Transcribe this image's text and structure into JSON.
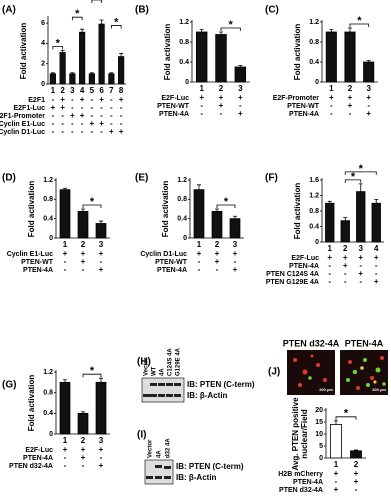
{
  "chart_data": [
    {
      "type": "bar",
      "panel": "(A)",
      "ylabel": "Fold activation",
      "ylim": [
        0,
        6.5
      ],
      "yticks": [
        0,
        2,
        4,
        6
      ],
      "color": "#111",
      "categories": [
        "1",
        "2",
        "3",
        "4",
        "5",
        "6",
        "7",
        "8"
      ],
      "values": [
        1,
        3.1,
        1,
        5.1,
        1,
        5.9,
        1,
        2.7
      ],
      "errors": [
        0.1,
        0.2,
        0.1,
        0.3,
        0.1,
        0.4,
        0.1,
        0.3
      ],
      "conditions": [
        {
          "label": "E2F1",
          "signs": [
            "-",
            "+",
            "-",
            "+",
            "-",
            "+",
            "-",
            "+"
          ]
        },
        {
          "label": "E2F1-Luc",
          "signs": [
            "+",
            "+",
            "-",
            "-",
            "-",
            "-",
            "-",
            "-"
          ]
        },
        {
          "label": "E2F1-Promoter",
          "signs": [
            "-",
            "-",
            "+",
            "+",
            "-",
            "-",
            "-",
            "-"
          ]
        },
        {
          "label": "Cyclin E1-Luc",
          "signs": [
            "-",
            "-",
            "-",
            "-",
            "+",
            "+",
            "-",
            "-"
          ]
        },
        {
          "label": "Cyclin D1-Luc",
          "signs": [
            "-",
            "-",
            "-",
            "-",
            "-",
            "-",
            "+",
            "+"
          ]
        }
      ],
      "brackets": [
        {
          "between": [
            "1",
            "2"
          ],
          "label": "*"
        },
        {
          "between": [
            "3",
            "4"
          ],
          "label": "*"
        },
        {
          "between": [
            "5",
            "6"
          ],
          "label": "*"
        },
        {
          "between": [
            "7",
            "8"
          ],
          "label": "*"
        }
      ]
    },
    {
      "type": "bar",
      "panel": "(B)",
      "ylabel": "Fold activation",
      "ylim": [
        0,
        1.2
      ],
      "yticks": [
        0,
        0.4,
        0.8,
        1.2
      ],
      "color": "#111",
      "categories": [
        "1",
        "2",
        "3"
      ],
      "values": [
        1.0,
        0.95,
        0.3
      ],
      "errors": [
        0.05,
        0.05,
        0.03
      ],
      "conditions": [
        {
          "label": "E2F-Luc",
          "signs": [
            "+",
            "+",
            "+"
          ]
        },
        {
          "label": "PTEN-WT",
          "signs": [
            "-",
            "+",
            "-"
          ]
        },
        {
          "label": "PTEN-4A",
          "signs": [
            "-",
            "-",
            "+"
          ]
        }
      ],
      "brackets": [
        {
          "between": [
            "2",
            "3"
          ],
          "label": "*"
        }
      ]
    },
    {
      "type": "bar",
      "panel": "(C)",
      "ylabel": "Fold activation",
      "ylim": [
        0,
        1.2
      ],
      "yticks": [
        0,
        0.4,
        0.8,
        1.2
      ],
      "color": "#111",
      "categories": [
        "1",
        "2",
        "3"
      ],
      "values": [
        1.0,
        1.0,
        0.4
      ],
      "errors": [
        0.05,
        0.08,
        0.03
      ],
      "conditions": [
        {
          "label": "E2F-Promoter",
          "signs": [
            "+",
            "+",
            "+"
          ]
        },
        {
          "label": "PTEN-WT",
          "signs": [
            "-",
            "+",
            "-"
          ]
        },
        {
          "label": "PTEN-4A",
          "signs": [
            "-",
            "-",
            "+"
          ]
        }
      ],
      "brackets": [
        {
          "between": [
            "2",
            "3"
          ],
          "label": "*"
        }
      ]
    },
    {
      "type": "bar",
      "panel": "(D)",
      "ylabel": "Fold activation",
      "ylim": [
        0,
        1.2
      ],
      "yticks": [
        0,
        0.4,
        0.8,
        1.2
      ],
      "color": "#111",
      "categories": [
        "1",
        "2",
        "3"
      ],
      "values": [
        1.0,
        0.55,
        0.3
      ],
      "errors": [
        0.03,
        0.05,
        0.05
      ],
      "conditions": [
        {
          "label": "Cyclin E1-Luc",
          "signs": [
            "+",
            "+",
            "+"
          ]
        },
        {
          "label": "PTEN-WT",
          "signs": [
            "-",
            "+",
            "-"
          ]
        },
        {
          "label": "PTEN-4A",
          "signs": [
            "-",
            "-",
            "+"
          ]
        }
      ],
      "brackets": [
        {
          "between": [
            "2",
            "3"
          ],
          "label": "*"
        }
      ]
    },
    {
      "type": "bar",
      "panel": "(E)",
      "ylabel": "Fold activation",
      "ylim": [
        0,
        1.2
      ],
      "yticks": [
        0,
        0.4,
        0.8,
        1.2
      ],
      "color": "#111",
      "categories": [
        "1",
        "2",
        "3"
      ],
      "values": [
        1.0,
        0.55,
        0.4
      ],
      "errors": [
        0.1,
        0.05,
        0.05
      ],
      "conditions": [
        {
          "label": "Cyclin D1-Luc",
          "signs": [
            "+",
            "+",
            "+"
          ]
        },
        {
          "label": "PTEN-WT",
          "signs": [
            "-",
            "+",
            "-"
          ]
        },
        {
          "label": "PTEN-4A",
          "signs": [
            "-",
            "-",
            "+"
          ]
        }
      ],
      "brackets": [
        {
          "between": [
            "2",
            "3"
          ],
          "label": "*"
        }
      ]
    },
    {
      "type": "bar",
      "panel": "(F)",
      "ylabel": "Fold activation",
      "ylim": [
        0,
        1.6
      ],
      "yticks": [
        0,
        0.4,
        0.8,
        1.2,
        1.6
      ],
      "color": "#111",
      "categories": [
        "1",
        "2",
        "3",
        "4"
      ],
      "values": [
        1.0,
        0.55,
        1.3,
        1.0
      ],
      "errors": [
        0.05,
        0.08,
        0.2,
        0.1
      ],
      "conditions": [
        {
          "label": "E2F-Luc",
          "signs": [
            "+",
            "+",
            "+",
            "+"
          ]
        },
        {
          "label": "PTEN-4A",
          "signs": [
            "-",
            "+",
            "-",
            "-"
          ]
        },
        {
          "label": "PTEN C124S 4A",
          "signs": [
            "-",
            "-",
            "+",
            "-"
          ]
        },
        {
          "label": "PTEN G129E 4A",
          "signs": [
            "-",
            "-",
            "-",
            "+"
          ]
        }
      ],
      "brackets": [
        {
          "between": [
            "2",
            "3"
          ],
          "label": "*"
        },
        {
          "between": [
            "2",
            "4"
          ],
          "label": "*"
        }
      ]
    },
    {
      "type": "bar",
      "panel": "(G)",
      "ylabel": "Fold activation",
      "ylim": [
        0,
        1.2
      ],
      "yticks": [
        0,
        0.4,
        0.8,
        1.2
      ],
      "color": "#111",
      "categories": [
        "1",
        "2",
        "3"
      ],
      "values": [
        1.0,
        0.4,
        1.0
      ],
      "errors": [
        0.05,
        0.03,
        0.08
      ],
      "conditions": [
        {
          "label": "E2F-Luc",
          "signs": [
            "+",
            "+",
            "+"
          ]
        },
        {
          "label": "PTEN-4A",
          "signs": [
            "-",
            "+",
            "-"
          ]
        },
        {
          "label": "PTEN d32-4A",
          "signs": [
            "-",
            "-",
            "+"
          ]
        }
      ],
      "brackets": [
        {
          "between": [
            "2",
            "3"
          ],
          "label": "*"
        }
      ]
    },
    {
      "type": "bar",
      "panel": "(J)",
      "ylabel": [
        "Avg. PTEN positive",
        "nuclear/Field"
      ],
      "ylim": [
        0,
        20
      ],
      "yticks": [
        0,
        5,
        10,
        15,
        20
      ],
      "colors": [
        "#fff",
        "#111"
      ],
      "categories": [
        "1",
        "2"
      ],
      "values": [
        14,
        3
      ],
      "errors": [
        1.5,
        0.3
      ],
      "conditions": [
        {
          "label": "H2B mCherry",
          "signs": [
            "+",
            "+"
          ]
        },
        {
          "label": "PTEN-4A",
          "signs": [
            "-",
            "+"
          ]
        },
        {
          "label": "PTEN d32-4A",
          "signs": [
            "+",
            "-"
          ]
        }
      ],
      "brackets": [
        {
          "between": [
            "1",
            "2"
          ],
          "label": "*"
        }
      ],
      "images": [
        {
          "title": "PTEN d32-4A",
          "scale": "200 μm"
        },
        {
          "title": "PTEN-4A",
          "scale": "200 μm"
        }
      ]
    }
  ],
  "blots": [
    {
      "panel": "(H)",
      "lanes": [
        "Vector",
        "WT",
        "4A",
        "C124S 4A",
        "G129E 4A"
      ],
      "bands": [
        "IB: PTEN (C-term)",
        "IB: β-Actin"
      ]
    },
    {
      "panel": "(I)",
      "lanes": [
        "Vector",
        "4A",
        "d32 4A"
      ],
      "bands": [
        "IB: PTEN (C-term)",
        "IB: β-Actin"
      ]
    }
  ]
}
